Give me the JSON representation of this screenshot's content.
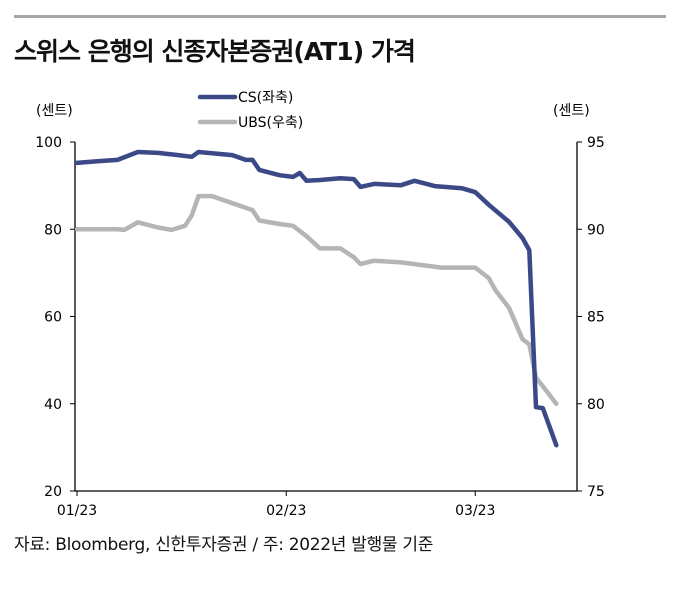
{
  "title": "스위스 은행의 신종자본증권(AT1) 가격",
  "source": "자료: Bloomberg, 신한투자증권 / 주: 2022년 발행물 기준",
  "chart_data": {
    "type": "line",
    "title": "스위스 은행의 신종자본증권(AT1) 가격",
    "ylabel": "(센트)",
    "y2label": "(센트)",
    "ylim": [
      20,
      100
    ],
    "y2lim": [
      75,
      95
    ],
    "yticks": [
      20,
      40,
      60,
      80,
      100
    ],
    "y2ticks": [
      75,
      80,
      85,
      90,
      95
    ],
    "xticks": [
      {
        "date": "2023-01-01",
        "label": "01/23"
      },
      {
        "date": "2023-02-01",
        "label": "02/23"
      },
      {
        "date": "2023-03-01",
        "label": "03/23"
      }
    ],
    "grid": false,
    "legend": "top-center",
    "series": [
      {
        "name": "CS(좌축)",
        "axis": "left",
        "color": "#3b4a87",
        "points": [
          [
            "2023-01-01",
            95.2
          ],
          [
            "2023-01-04",
            95.6
          ],
          [
            "2023-01-07",
            95.9
          ],
          [
            "2023-01-10",
            97.7
          ],
          [
            "2023-01-13",
            97.5
          ],
          [
            "2023-01-16",
            97.0
          ],
          [
            "2023-01-18",
            96.6
          ],
          [
            "2023-01-19",
            97.7
          ],
          [
            "2023-01-24",
            97.0
          ],
          [
            "2023-01-26",
            95.9
          ],
          [
            "2023-01-27",
            95.9
          ],
          [
            "2023-01-28",
            93.6
          ],
          [
            "2023-01-31",
            92.4
          ],
          [
            "2023-02-02",
            92.0
          ],
          [
            "2023-02-03",
            92.9
          ],
          [
            "2023-02-04",
            91.1
          ],
          [
            "2023-02-06",
            91.3
          ],
          [
            "2023-02-09",
            91.7
          ],
          [
            "2023-02-11",
            91.5
          ],
          [
            "2023-02-12",
            89.7
          ],
          [
            "2023-02-14",
            90.4
          ],
          [
            "2023-02-18",
            90.1
          ],
          [
            "2023-02-20",
            91.1
          ],
          [
            "2023-02-23",
            89.9
          ],
          [
            "2023-02-27",
            89.4
          ],
          [
            "2023-03-01",
            88.5
          ],
          [
            "2023-03-03",
            85.6
          ],
          [
            "2023-03-06",
            81.7
          ],
          [
            "2023-03-08",
            78.0
          ],
          [
            "2023-03-09",
            75.2
          ],
          [
            "2023-03-10",
            39.2
          ],
          [
            "2023-03-11",
            39.0
          ],
          [
            "2023-03-13",
            30.5
          ]
        ]
      },
      {
        "name": "UBS(우축)",
        "axis": "right",
        "color": "#b5b5b5",
        "points": [
          [
            "2023-01-01",
            90.0
          ],
          [
            "2023-01-07",
            90.0
          ],
          [
            "2023-01-08",
            89.96
          ],
          [
            "2023-01-10",
            90.4
          ],
          [
            "2023-01-13",
            90.1
          ],
          [
            "2023-01-15",
            89.96
          ],
          [
            "2023-01-17",
            90.2
          ],
          [
            "2023-01-18",
            90.8
          ],
          [
            "2023-01-19",
            91.9
          ],
          [
            "2023-01-21",
            91.9
          ],
          [
            "2023-01-24",
            91.5
          ],
          [
            "2023-01-27",
            91.1
          ],
          [
            "2023-01-28",
            90.5
          ],
          [
            "2023-01-31",
            90.3
          ],
          [
            "2023-02-02",
            90.2
          ],
          [
            "2023-02-04",
            89.6
          ],
          [
            "2023-02-06",
            88.9
          ],
          [
            "2023-02-09",
            88.9
          ],
          [
            "2023-02-11",
            88.4
          ],
          [
            "2023-02-12",
            88.0
          ],
          [
            "2023-02-14",
            88.2
          ],
          [
            "2023-02-18",
            88.1
          ],
          [
            "2023-02-22",
            87.9
          ],
          [
            "2023-02-24",
            87.8
          ],
          [
            "2023-03-01",
            87.8
          ],
          [
            "2023-03-03",
            87.2
          ],
          [
            "2023-03-04",
            86.5
          ],
          [
            "2023-03-06",
            85.5
          ],
          [
            "2023-03-08",
            83.7
          ],
          [
            "2023-03-09",
            83.4
          ],
          [
            "2023-03-10",
            81.5
          ],
          [
            "2023-03-11",
            81.0
          ],
          [
            "2023-03-13",
            80.0
          ]
        ]
      }
    ]
  }
}
